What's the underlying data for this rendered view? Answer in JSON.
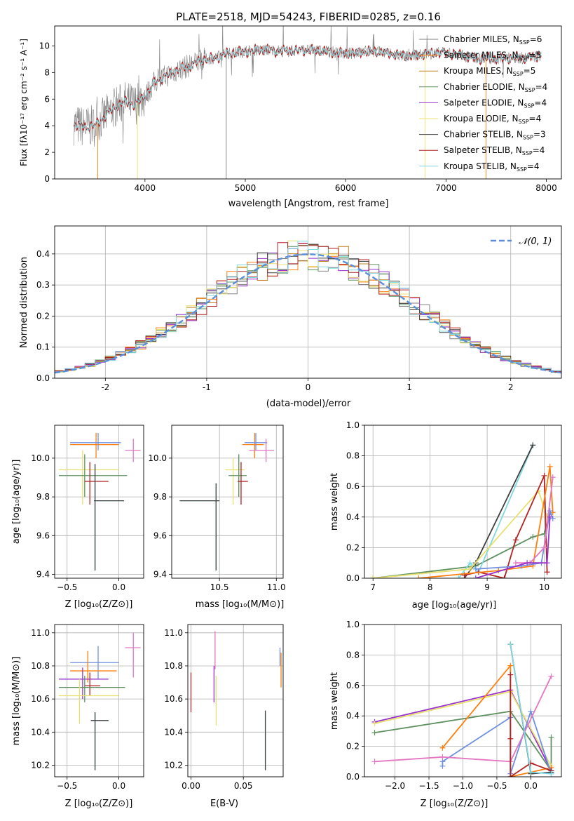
{
  "colors": {
    "palette": [
      "#808080",
      "#ff7f0e",
      "#c08020",
      "#5f9060",
      "#9932cc",
      "#e8e070",
      "#404040",
      "#b22222",
      "#80d8e0",
      "#6f8fdf",
      "#e377c2",
      "#1f77b4"
    ]
  },
  "chart_data": [
    {
      "id": "spectrum",
      "type": "line",
      "title": "PLATE=2518, MJD=54243, FIBERID=0285, z=0.16",
      "xlabel": "wavelength [Angstrom, rest frame]",
      "ylabel": "Flux [fλ10⁻¹⁷ erg cm⁻² s⁻¹ A⁻¹]",
      "xlim": [
        3100,
        8150
      ],
      "ylim": [
        0,
        11.5
      ],
      "xticks": [
        4000,
        5000,
        6000,
        7000,
        8000
      ],
      "yticks": [
        0,
        2,
        4,
        6,
        8,
        10
      ],
      "legend_placement": "right",
      "legend": [
        "Chabrier MILES, N_SSP=6",
        "Salpeter MILES, N_SSP=5",
        "Kroupa MILES, N_SSP=5",
        "Chabrier ELODIE, N_SSP=4",
        "Salpeter ELODIE, N_SSP=4",
        "Kroupa ELODIE, N_SSP=4",
        "Chabrier STELIB, N_SSP=3",
        "Salpeter STELIB, N_SSP=4",
        "Kroupa STELIB, N_SSP=4"
      ],
      "continuum": {
        "x": [
          3290,
          3400,
          3500,
          3600,
          3700,
          3800,
          3900,
          4000,
          4100,
          4200,
          4300,
          4400,
          4500,
          4600,
          4700,
          4800,
          4900,
          5000,
          5200,
          5400,
          5600,
          5800,
          6000,
          6200,
          6400,
          6600,
          6800,
          7000,
          7200,
          7400,
          7600,
          7800,
          7950
        ],
        "y": [
          4.1,
          3.9,
          4.0,
          4.7,
          5.4,
          5.8,
          5.6,
          6.2,
          7.3,
          7.7,
          8.1,
          8.4,
          8.7,
          9.0,
          9.1,
          9.4,
          9.5,
          9.6,
          9.7,
          9.6,
          9.7,
          9.6,
          9.4,
          9.6,
          9.5,
          9.2,
          9.4,
          9.5,
          9.2,
          9.0,
          9.1,
          9.1,
          9.3
        ]
      }
    },
    {
      "id": "residuals",
      "type": "histogram",
      "xlabel": "(data-model)/error",
      "ylabel": "Normed distribution",
      "xlim": [
        -2.5,
        2.5
      ],
      "ylim": [
        0,
        0.49
      ],
      "xticks": [
        -2,
        -1,
        0,
        1,
        2
      ],
      "yticks": [
        0.0,
        0.1,
        0.2,
        0.3,
        0.4
      ],
      "legend": [
        "𝒩(0, 1)"
      ],
      "legend_placement": "top-right",
      "curve": {
        "type": "gaussian",
        "mean": 0,
        "sigma": 1
      }
    },
    {
      "id": "age-vs-Z",
      "type": "errorbar",
      "xlabel": "Z [log₁₀(Z/Z⊙)]",
      "ylabel": "age  [log₁₀(age/yr)]",
      "xlim": [
        -0.62,
        0.24
      ],
      "ylim": [
        9.38,
        10.17
      ],
      "xticks": [
        -0.5,
        0.0
      ],
      "xticklabels": [
        "−0.5",
        "0.0"
      ],
      "yticks": [
        9.4,
        9.6,
        9.8,
        10.0
      ],
      "points": [
        {
          "x": -0.22,
          "y": 10.07,
          "xlo": -0.47,
          "xhi": 0.0,
          "ylo": 10.0,
          "yhi": 10.13,
          "c": 1
        },
        {
          "x": -0.2,
          "y": 10.08,
          "xlo": -0.47,
          "xhi": 0.02,
          "ylo": 10.04,
          "yhi": 10.13,
          "c": 9
        },
        {
          "x": 0.14,
          "y": 10.04,
          "xlo": 0.06,
          "xhi": 0.21,
          "ylo": 9.98,
          "yhi": 10.1,
          "c": 10
        },
        {
          "x": -0.35,
          "y": 9.94,
          "xlo": -0.58,
          "xhi": 0.0,
          "ylo": 9.76,
          "yhi": 10.04,
          "c": 5
        },
        {
          "x": -0.33,
          "y": 9.91,
          "xlo": -0.58,
          "xhi": 0.08,
          "ylo": 9.8,
          "yhi": 10.02,
          "c": 3
        },
        {
          "x": -0.28,
          "y": 9.88,
          "xlo": -0.33,
          "xhi": -0.1,
          "ylo": 9.76,
          "yhi": 9.98,
          "c": 7
        },
        {
          "x": -0.23,
          "y": 9.78,
          "xlo": -0.24,
          "xhi": 0.05,
          "ylo": 9.42,
          "yhi": 9.97,
          "c": 8
        },
        {
          "x": -0.23,
          "y": 9.78,
          "xlo": -0.24,
          "xhi": 0.05,
          "ylo": 9.42,
          "yhi": 9.97,
          "c": 6
        }
      ]
    },
    {
      "id": "age-vs-mass",
      "type": "errorbar",
      "xlabel": "mass [log₁₀(M/M⊙)]",
      "xlim": [
        10.08,
        11.06
      ],
      "ylim": [
        9.38,
        10.17
      ],
      "xticks": [
        10.5,
        11.0
      ],
      "xticklabels": [
        "10.5",
        "11.0"
      ],
      "yticks": [
        9.4,
        9.6,
        9.8,
        10.0
      ],
      "points": [
        {
          "x": 10.81,
          "y": 10.07,
          "xlo": 10.7,
          "xhi": 10.89,
          "ylo": 10.0,
          "yhi": 10.13,
          "c": 1
        },
        {
          "x": 10.82,
          "y": 10.08,
          "xlo": 10.72,
          "xhi": 10.92,
          "ylo": 10.04,
          "yhi": 10.13,
          "c": 9
        },
        {
          "x": 10.91,
          "y": 10.04,
          "xlo": 10.76,
          "xhi": 10.98,
          "ylo": 9.98,
          "yhi": 10.1,
          "c": 10
        },
        {
          "x": 10.62,
          "y": 9.94,
          "xlo": 10.55,
          "xhi": 10.72,
          "ylo": 9.76,
          "yhi": 10.0,
          "c": 5
        },
        {
          "x": 10.67,
          "y": 9.91,
          "xlo": 10.58,
          "xhi": 10.74,
          "ylo": 9.8,
          "yhi": 10.02,
          "c": 3
        },
        {
          "x": 10.69,
          "y": 9.88,
          "xlo": 10.66,
          "xhi": 10.75,
          "ylo": 9.76,
          "yhi": 9.98,
          "c": 7
        },
        {
          "x": 10.47,
          "y": 9.78,
          "xlo": 10.15,
          "xhi": 10.5,
          "ylo": 9.42,
          "yhi": 9.87,
          "c": 8
        },
        {
          "x": 10.47,
          "y": 9.78,
          "xlo": 10.15,
          "xhi": 10.5,
          "ylo": 9.42,
          "yhi": 9.87,
          "c": 6
        }
      ]
    },
    {
      "id": "weight-vs-age",
      "type": "line",
      "xlabel": "age  [log₁₀(age/yr)]",
      "ylabel": "mass weight",
      "xlim": [
        6.85,
        10.3
      ],
      "ylim": [
        0,
        1.0
      ],
      "xticks": [
        7,
        8,
        9,
        10
      ],
      "yticks": [
        0.0,
        0.2,
        0.4,
        0.6,
        0.8,
        1.0
      ],
      "series": [
        {
          "c": 3,
          "x": [
            7.0,
            8.8,
            9.8,
            10.0,
            10.1
          ],
          "y": [
            0.0,
            0.08,
            0.27,
            0.29,
            0.42
          ]
        },
        {
          "c": 8,
          "x": [
            8.5,
            8.7,
            8.85,
            9.8
          ],
          "y": [
            0.0,
            0.1,
            0.04,
            0.87
          ]
        },
        {
          "c": 6,
          "x": [
            8.6,
            8.8,
            9.8
          ],
          "y": [
            0.0,
            0.1,
            0.87
          ]
        },
        {
          "c": 5,
          "x": [
            7.0,
            8.7,
            9.9,
            10.05
          ],
          "y": [
            0.0,
            0.06,
            0.57,
            0.4
          ]
        },
        {
          "c": 7,
          "x": [
            8.6,
            8.85,
            9.3,
            9.5,
            10.0,
            10.05
          ],
          "y": [
            0.02,
            0.04,
            0.0,
            0.25,
            0.67,
            0.04
          ]
        },
        {
          "c": 1,
          "x": [
            7.8,
            9.2,
            9.8,
            10.1,
            10.15
          ],
          "y": [
            0.0,
            0.05,
            0.08,
            0.73,
            0.43
          ]
        },
        {
          "c": 9,
          "x": [
            8.8,
            9.6,
            9.95,
            10.1,
            10.15
          ],
          "y": [
            0.06,
            0.08,
            0.1,
            0.44,
            0.39
          ]
        },
        {
          "c": 10,
          "x": [
            9.5,
            9.75,
            10.0,
            10.15
          ],
          "y": [
            0.1,
            0.1,
            0.2,
            0.66
          ]
        },
        {
          "c": 4,
          "x": [
            8.8,
            9.7,
            10.05,
            10.1
          ],
          "y": [
            0.0,
            0.1,
            0.1,
            0.4
          ]
        }
      ]
    },
    {
      "id": "mass-vs-Z",
      "type": "errorbar",
      "xlabel": "Z [log₁₀(Z/Z⊙)]",
      "ylabel": "mass [log₁₀(M/M⊙)]",
      "xlim": [
        -0.62,
        0.24
      ],
      "ylim": [
        10.13,
        11.05
      ],
      "xticks": [
        -0.5,
        0.0
      ],
      "xticklabels": [
        "−0.5",
        "0.0"
      ],
      "yticks": [
        10.2,
        10.4,
        10.6,
        10.8,
        11.0
      ],
      "points": [
        {
          "x": 0.14,
          "y": 10.91,
          "xlo": 0.06,
          "xhi": 0.21,
          "ylo": 10.73,
          "yhi": 11.0,
          "c": 10
        },
        {
          "x": -0.2,
          "y": 10.82,
          "xlo": -0.47,
          "xhi": 0.0,
          "ylo": 10.72,
          "yhi": 10.92,
          "c": 9
        },
        {
          "x": -0.3,
          "y": 10.77,
          "xlo": -0.47,
          "xhi": -0.02,
          "ylo": 10.7,
          "yhi": 10.89,
          "c": 1
        },
        {
          "x": -0.35,
          "y": 10.72,
          "xlo": -0.58,
          "xhi": -0.1,
          "ylo": 10.6,
          "yhi": 10.79,
          "c": 4
        },
        {
          "x": -0.28,
          "y": 10.68,
          "xlo": -0.33,
          "xhi": -0.18,
          "ylo": 10.62,
          "yhi": 10.76,
          "c": 7
        },
        {
          "x": -0.33,
          "y": 10.67,
          "xlo": -0.58,
          "xhi": 0.06,
          "ylo": 10.58,
          "yhi": 10.74,
          "c": 3
        },
        {
          "x": -0.38,
          "y": 10.62,
          "xlo": -0.58,
          "xhi": 0.0,
          "ylo": 10.45,
          "yhi": 10.72,
          "c": 5
        },
        {
          "x": -0.23,
          "y": 10.47,
          "xlo": -0.27,
          "xhi": -0.1,
          "ylo": 10.17,
          "yhi": 10.52,
          "c": 8
        },
        {
          "x": -0.23,
          "y": 10.47,
          "xlo": -0.27,
          "xhi": -0.1,
          "ylo": 10.17,
          "yhi": 10.52,
          "c": 6
        }
      ]
    },
    {
      "id": "mass-vs-EBV",
      "type": "errorbar",
      "xlabel": "E(B-V)",
      "xlim": [
        -0.003,
        0.088
      ],
      "ylim": [
        10.13,
        11.05
      ],
      "xticks": [
        0.0,
        0.05
      ],
      "xticklabels": [
        "0.00",
        "0.05"
      ],
      "yticks": [
        10.2,
        10.4,
        10.6,
        10.8,
        11.0
      ],
      "points": [
        {
          "x": 0.086,
          "y": 10.78,
          "ylo": 10.67,
          "yhi": 10.88,
          "c": 1
        },
        {
          "x": 0.085,
          "y": 10.85,
          "ylo": 10.8,
          "yhi": 10.91,
          "c": 9
        },
        {
          "x": 0.023,
          "y": 10.9,
          "ylo": 10.78,
          "yhi": 11.01,
          "c": 10
        },
        {
          "x": 0.022,
          "y": 10.71,
          "ylo": 10.58,
          "yhi": 10.8,
          "c": 4
        },
        {
          "x": 0.024,
          "y": 10.6,
          "ylo": 10.44,
          "yhi": 10.74,
          "c": 5
        },
        {
          "x": 0.0,
          "y": 10.64,
          "ylo": 10.52,
          "yhi": 10.76,
          "c": 7
        },
        {
          "x": 0.071,
          "y": 10.35,
          "ylo": 10.17,
          "yhi": 10.53,
          "c": 8
        },
        {
          "x": 0.071,
          "y": 10.35,
          "ylo": 10.17,
          "yhi": 10.53,
          "c": 6
        }
      ]
    },
    {
      "id": "weight-vs-Z",
      "type": "line",
      "xlabel": "Z [log₁₀(Z/Z⊙)]",
      "ylabel": "mass weight",
      "xlim": [
        -2.45,
        0.45
      ],
      "ylim": [
        0,
        1.0
      ],
      "xticks": [
        -2.0,
        -1.5,
        -1.0,
        -0.5,
        0.0
      ],
      "xticklabels": [
        "−2.0",
        "−1.5",
        "−1.0",
        "−0.5",
        "0.0"
      ],
      "yticks": [
        0.0,
        0.2,
        0.4,
        0.6,
        0.8,
        1.0
      ],
      "series": [
        {
          "c": 3,
          "x": [
            -2.3,
            -0.3,
            0.3,
            0.3,
            0.3
          ],
          "y": [
            0.29,
            0.43,
            0.04,
            0.26,
            0.04
          ]
        },
        {
          "c": 4,
          "x": [
            -2.3,
            -0.3,
            0.3
          ],
          "y": [
            0.36,
            0.57,
            0.04
          ]
        },
        {
          "c": 5,
          "x": [
            -2.3,
            -0.3,
            0.3
          ],
          "y": [
            0.35,
            0.56,
            0.07
          ]
        },
        {
          "c": 1,
          "x": [
            -1.3,
            -0.3,
            -0.3,
            0.3
          ],
          "y": [
            0.19,
            0.73,
            0.0,
            0.06
          ]
        },
        {
          "c": 9,
          "x": [
            -1.3,
            -1.3,
            -0.3,
            -0.3,
            0.0,
            0.3
          ],
          "y": [
            0.07,
            0.1,
            0.39,
            0.02,
            0.43,
            0.02
          ]
        },
        {
          "c": 10,
          "x": [
            -2.3,
            -1.3,
            -0.3,
            0.3
          ],
          "y": [
            0.1,
            0.13,
            0.1,
            0.66
          ]
        },
        {
          "c": 7,
          "x": [
            -0.3,
            -0.3,
            -0.3,
            0.0,
            0.3
          ],
          "y": [
            0.67,
            0.25,
            0.0,
            0.09,
            0.04
          ]
        },
        {
          "c": 6,
          "x": [
            -0.3,
            0.0,
            0.3
          ],
          "y": [
            0.87,
            0.02,
            0.03
          ]
        },
        {
          "c": 8,
          "x": [
            -0.3,
            0.0,
            0.3
          ],
          "y": [
            0.87,
            0.03,
            0.02
          ]
        }
      ]
    }
  ]
}
